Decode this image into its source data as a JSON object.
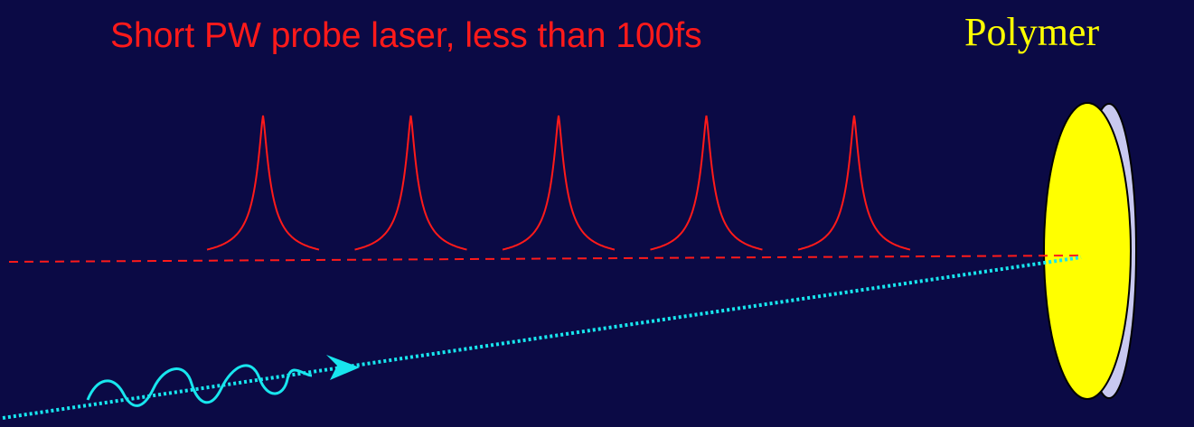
{
  "title": "Short PW probe laser, less than 100fs",
  "target_label": "Polymer",
  "colors": {
    "background": "#0b0a45",
    "probe_laser": "#ff1a1a",
    "incoming_beam": "#18e6ee",
    "polymer_face": "#ffff00",
    "polymer_edge": "#c8c8f0",
    "title_text": "#ff1a1a",
    "label_text": "#ffff00"
  },
  "diagram": {
    "probe_pulse_count": 5,
    "elements": [
      "probe-beam-axis",
      "probe-pulse-train",
      "incoming-beam",
      "incoming-wave",
      "beam-arrow",
      "polymer-target"
    ]
  }
}
